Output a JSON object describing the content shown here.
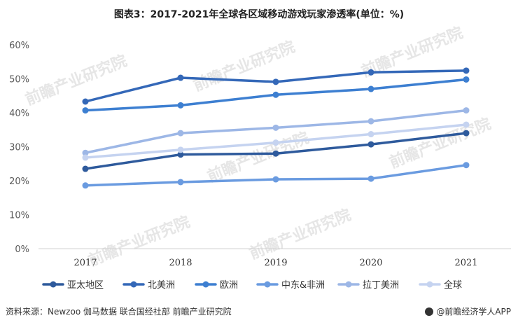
{
  "title": "图表3：2017-2021年全球各区域移动游戏玩家渗透率(单位：%)",
  "source": "资料来源：Newzoo 伽马数据 联合国经社部 前瞻产业研究院",
  "brand": "@前瞻经济学人APP",
  "watermark": "前瞻产业研究院",
  "chart_data": {
    "type": "line",
    "x": [
      "2017",
      "2018",
      "2019",
      "2020",
      "2021"
    ],
    "ylim": [
      0,
      60
    ],
    "yticks": [
      "0%",
      "10%",
      "20%",
      "30%",
      "40%",
      "50%",
      "60%"
    ],
    "grid": false,
    "legend_position": "bottom",
    "series": [
      {
        "name": "亚太地区",
        "color": "#2e5a9c",
        "values": [
          23.5,
          27.7,
          28.0,
          30.7,
          34.0
        ]
      },
      {
        "name": "北美洲",
        "color": "#3468b8",
        "values": [
          43.3,
          50.3,
          49.1,
          51.9,
          52.4
        ]
      },
      {
        "name": "欧洲",
        "color": "#3d7fd1",
        "values": [
          40.7,
          42.2,
          45.3,
          47.0,
          49.8
        ]
      },
      {
        "name": "中东&非洲",
        "color": "#6a9be0",
        "values": [
          18.6,
          19.6,
          20.4,
          20.6,
          24.6
        ]
      },
      {
        "name": "拉丁美洲",
        "color": "#9db7e6",
        "values": [
          28.2,
          34.0,
          35.6,
          37.5,
          40.7
        ]
      },
      {
        "name": "全球",
        "color": "#c5d3f0",
        "values": [
          26.8,
          29.1,
          31.2,
          33.7,
          36.5
        ]
      }
    ]
  }
}
